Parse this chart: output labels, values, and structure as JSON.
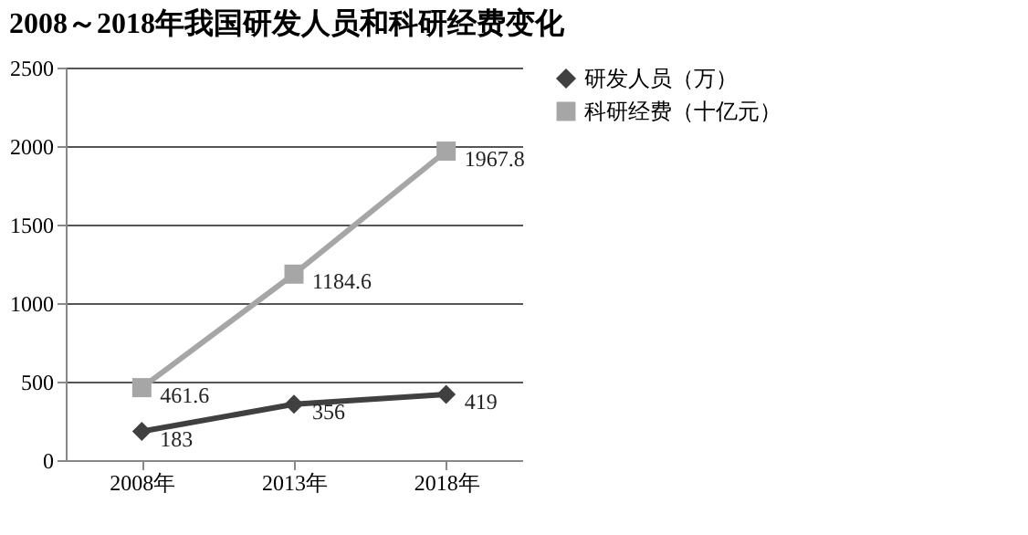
{
  "chart_data": {
    "type": "line",
    "title": "2008～2018年我国研发人员和科研经费变化",
    "categories": [
      "2008年",
      "2013年",
      "2018年"
    ],
    "series": [
      {
        "name": "研发人员（万）",
        "color": "#404040",
        "marker": "diamond",
        "values": [
          183,
          356,
          419
        ]
      },
      {
        "name": "科研经费（十亿元）",
        "color": "#a6a6a6",
        "marker": "square",
        "values": [
          461.6,
          1184.6,
          1967.8
        ]
      }
    ],
    "ylim": [
      0,
      2500
    ],
    "yticks": [
      0,
      500,
      1000,
      1500,
      2000,
      2500
    ],
    "grid": "y",
    "legend": "right",
    "data_labels": true
  }
}
